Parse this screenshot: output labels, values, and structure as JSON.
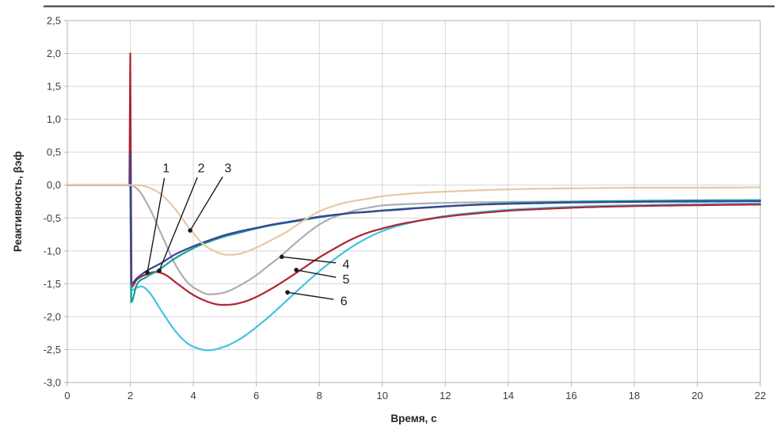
{
  "page": {
    "top_rule_color": "#55565a"
  },
  "chart_data": {
    "type": "line",
    "title": "",
    "xlabel": "Время, с",
    "ylabel": "Реактивность, βэф",
    "xlim": [
      0,
      22
    ],
    "ylim": [
      -3.0,
      2.5
    ],
    "grid": true,
    "legend": "numbered annotations on curves (no legend box)",
    "x_ticks": {
      "values": [
        0,
        2,
        4,
        6,
        8,
        10,
        12,
        14,
        16,
        18,
        20,
        22
      ],
      "labels": [
        "0",
        "2",
        "4",
        "6",
        "8",
        "10",
        "12",
        "14",
        "16",
        "18",
        "20",
        "22"
      ]
    },
    "y_ticks": {
      "values": [
        2.5,
        2.0,
        1.5,
        1.0,
        0.5,
        0.0,
        -0.5,
        -1.0,
        -1.5,
        -2.0,
        -2.5,
        -3.0
      ],
      "labels": [
        "2,5",
        "2,0",
        "1,5",
        "1,0",
        "0,5",
        "0,0",
        "-0,5",
        "-1,0",
        "-1,5",
        "-2,0",
        "-2,5",
        "-3,0"
      ]
    },
    "colors": {
      "grid": "#d6d6d6",
      "frame": "#b3b3b3",
      "annotation": "#1a1a1a"
    },
    "series": [
      {
        "name": "4",
        "color": "#aeaeb1",
        "points": [
          [
            0,
            0
          ],
          [
            2.02,
            0
          ],
          [
            2.15,
            -0.03
          ],
          [
            2.3,
            -0.1
          ],
          [
            2.6,
            -0.34
          ],
          [
            3,
            -0.76
          ],
          [
            3.4,
            -1.18
          ],
          [
            3.8,
            -1.47
          ],
          [
            4.2,
            -1.61
          ],
          [
            4.5,
            -1.66
          ],
          [
            5,
            -1.63
          ],
          [
            5.5,
            -1.52
          ],
          [
            6,
            -1.37
          ],
          [
            6.4,
            -1.22
          ],
          [
            6.8,
            -1.07
          ],
          [
            7.2,
            -0.9
          ],
          [
            7.6,
            -0.74
          ],
          [
            8,
            -0.6
          ],
          [
            8.5,
            -0.48
          ],
          [
            9.1,
            -0.39
          ],
          [
            9.6,
            -0.34
          ],
          [
            10,
            -0.31
          ],
          [
            10.5,
            -0.295
          ],
          [
            11,
            -0.285
          ],
          [
            12,
            -0.27
          ],
          [
            13,
            -0.262
          ],
          [
            14,
            -0.256
          ],
          [
            15,
            -0.252
          ],
          [
            16,
            -0.25
          ],
          [
            17,
            -0.248
          ],
          [
            18,
            -0.246
          ],
          [
            19,
            -0.245
          ],
          [
            20,
            -0.244
          ],
          [
            21,
            -0.243
          ],
          [
            22,
            -0.242
          ]
        ]
      },
      {
        "name": "6",
        "color": "#41c3e0",
        "points": [
          [
            2.0,
            0
          ],
          [
            2.03,
            -1.6
          ],
          [
            2.2,
            -1.56
          ],
          [
            2.35,
            -1.54
          ],
          [
            2.6,
            -1.63
          ],
          [
            3,
            -1.92
          ],
          [
            3.4,
            -2.2
          ],
          [
            3.8,
            -2.4
          ],
          [
            4.2,
            -2.49
          ],
          [
            4.5,
            -2.51
          ],
          [
            4.9,
            -2.47
          ],
          [
            5.3,
            -2.39
          ],
          [
            5.7,
            -2.27
          ],
          [
            6,
            -2.16
          ],
          [
            6.5,
            -1.96
          ],
          [
            7,
            -1.74
          ],
          [
            7.5,
            -1.52
          ],
          [
            8,
            -1.31
          ],
          [
            8.5,
            -1.12
          ],
          [
            9,
            -0.95
          ],
          [
            9.5,
            -0.81
          ],
          [
            10,
            -0.7
          ],
          [
            10.5,
            -0.62
          ],
          [
            11,
            -0.56
          ],
          [
            11.5,
            -0.51
          ],
          [
            12,
            -0.47
          ],
          [
            13,
            -0.415
          ],
          [
            14,
            -0.375
          ],
          [
            15,
            -0.35
          ],
          [
            16,
            -0.33
          ],
          [
            17,
            -0.315
          ],
          [
            18,
            -0.305
          ],
          [
            19,
            -0.296
          ],
          [
            20,
            -0.29
          ],
          [
            21,
            -0.285
          ],
          [
            22,
            -0.28
          ]
        ]
      },
      {
        "name": "5",
        "color": "#af2433",
        "points": [
          [
            0,
            0
          ],
          [
            1.97,
            0
          ],
          [
            2.0,
            2.0
          ],
          [
            2.04,
            -1.55
          ],
          [
            2.2,
            -1.44
          ],
          [
            2.5,
            -1.36
          ],
          [
            2.8,
            -1.32
          ],
          [
            3.1,
            -1.36
          ],
          [
            3.5,
            -1.5
          ],
          [
            4,
            -1.67
          ],
          [
            4.5,
            -1.78
          ],
          [
            4.9,
            -1.82
          ],
          [
            5.3,
            -1.81
          ],
          [
            5.7,
            -1.76
          ],
          [
            6,
            -1.7
          ],
          [
            6.5,
            -1.57
          ],
          [
            7,
            -1.42
          ],
          [
            7.5,
            -1.26
          ],
          [
            8,
            -1.1
          ],
          [
            8.5,
            -0.96
          ],
          [
            9,
            -0.83
          ],
          [
            9.5,
            -0.73
          ],
          [
            10,
            -0.66
          ],
          [
            10.5,
            -0.6
          ],
          [
            11,
            -0.555
          ],
          [
            11.5,
            -0.515
          ],
          [
            12,
            -0.48
          ],
          [
            13,
            -0.43
          ],
          [
            14,
            -0.39
          ],
          [
            15,
            -0.365
          ],
          [
            16,
            -0.345
          ],
          [
            17,
            -0.33
          ],
          [
            18,
            -0.32
          ],
          [
            19,
            -0.312
          ],
          [
            20,
            -0.306
          ],
          [
            21,
            -0.3
          ],
          [
            22,
            -0.296
          ]
        ]
      },
      {
        "name": "2",
        "color": "#14a297",
        "points": [
          [
            2.0,
            0
          ],
          [
            2.03,
            -1.78
          ],
          [
            2.2,
            -1.52
          ],
          [
            2.5,
            -1.4
          ],
          [
            2.9,
            -1.29
          ],
          [
            3.4,
            -1.12
          ],
          [
            4,
            -0.96
          ],
          [
            4.5,
            -0.86
          ],
          [
            5,
            -0.78
          ],
          [
            5.5,
            -0.72
          ],
          [
            6,
            -0.66
          ],
          [
            6.5,
            -0.61
          ],
          [
            7,
            -0.57
          ],
          [
            7.5,
            -0.53
          ],
          [
            8,
            -0.49
          ],
          [
            8.7,
            -0.445
          ],
          [
            9,
            -0.425
          ],
          [
            9.5,
            -0.405
          ],
          [
            10,
            -0.385
          ],
          [
            11,
            -0.35
          ],
          [
            12,
            -0.32
          ],
          [
            13,
            -0.295
          ],
          [
            14,
            -0.275
          ],
          [
            15,
            -0.262
          ],
          [
            16,
            -0.252
          ],
          [
            17,
            -0.245
          ],
          [
            18,
            -0.24
          ],
          [
            19,
            -0.235
          ],
          [
            20,
            -0.232
          ],
          [
            21,
            -0.23
          ],
          [
            22,
            -0.228
          ]
        ]
      },
      {
        "name": "1",
        "color": "#3e4295",
        "points": [
          [
            0,
            0
          ],
          [
            1.985,
            0
          ],
          [
            2.005,
            0.5
          ],
          [
            2.03,
            -1.5
          ],
          [
            2.2,
            -1.42
          ],
          [
            2.5,
            -1.31
          ],
          [
            3,
            -1.18
          ],
          [
            3.4,
            -1.06
          ],
          [
            4,
            -0.93
          ],
          [
            4.5,
            -0.84
          ],
          [
            5,
            -0.76
          ],
          [
            5.5,
            -0.7
          ],
          [
            6,
            -0.65
          ],
          [
            6.5,
            -0.6
          ],
          [
            7,
            -0.56
          ],
          [
            7.5,
            -0.52
          ],
          [
            8,
            -0.48
          ],
          [
            8.7,
            -0.44
          ],
          [
            9,
            -0.425
          ],
          [
            9.5,
            -0.41
          ],
          [
            10,
            -0.39
          ],
          [
            10.5,
            -0.375
          ],
          [
            11,
            -0.355
          ],
          [
            11.5,
            -0.34
          ],
          [
            12,
            -0.325
          ],
          [
            13,
            -0.3
          ],
          [
            14,
            -0.285
          ],
          [
            15,
            -0.275
          ],
          [
            16,
            -0.265
          ],
          [
            17,
            -0.26
          ],
          [
            18,
            -0.255
          ],
          [
            19,
            -0.252
          ],
          [
            20,
            -0.25
          ],
          [
            21,
            -0.248
          ],
          [
            22,
            -0.245
          ]
        ]
      },
      {
        "name": "3",
        "color": "#e5c9a4",
        "points": [
          [
            0,
            0
          ],
          [
            2.2,
            0
          ],
          [
            2.6,
            -0.04
          ],
          [
            3,
            -0.15
          ],
          [
            3.4,
            -0.35
          ],
          [
            3.9,
            -0.67
          ],
          [
            4.3,
            -0.89
          ],
          [
            4.7,
            -1.01
          ],
          [
            5.1,
            -1.06
          ],
          [
            5.5,
            -1.04
          ],
          [
            6,
            -0.95
          ],
          [
            6.5,
            -0.83
          ],
          [
            7,
            -0.7
          ],
          [
            7.5,
            -0.54
          ],
          [
            8,
            -0.4
          ],
          [
            8.5,
            -0.31
          ],
          [
            9,
            -0.25
          ],
          [
            9.5,
            -0.21
          ],
          [
            10,
            -0.17
          ],
          [
            10.5,
            -0.145
          ],
          [
            11,
            -0.125
          ],
          [
            11.5,
            -0.11
          ],
          [
            12,
            -0.1
          ],
          [
            13,
            -0.08
          ],
          [
            14,
            -0.065
          ],
          [
            15,
            -0.055
          ],
          [
            16,
            -0.05
          ],
          [
            17,
            -0.045
          ],
          [
            18,
            -0.04
          ],
          [
            19,
            -0.04
          ],
          [
            20,
            -0.04
          ],
          [
            21,
            -0.038
          ],
          [
            22,
            -0.035
          ]
        ]
      }
    ],
    "annotations": [
      {
        "label": "1",
        "label_xy": [
          3.14,
          0.26
        ],
        "dot": [
          2.54,
          -1.33
        ]
      },
      {
        "label": "2",
        "label_xy": [
          4.25,
          0.26
        ],
        "dot": [
          2.92,
          -1.3
        ]
      },
      {
        "label": "3",
        "label_xy": [
          5.1,
          0.26
        ],
        "dot": [
          3.9,
          -0.69
        ]
      },
      {
        "label": "4",
        "label_xy": [
          8.85,
          -1.2
        ],
        "dot": [
          6.81,
          -1.09
        ]
      },
      {
        "label": "5",
        "label_xy": [
          8.85,
          -1.43
        ],
        "dot": [
          7.27,
          -1.29
        ]
      },
      {
        "label": "6",
        "label_xy": [
          8.78,
          -1.76
        ],
        "dot": [
          6.99,
          -1.63
        ]
      }
    ]
  }
}
